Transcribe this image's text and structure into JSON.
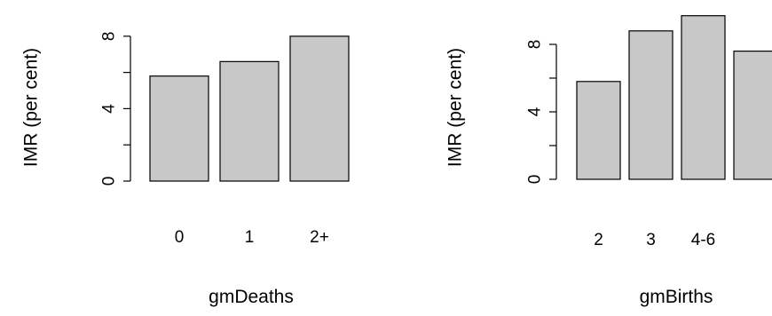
{
  "chart_data": [
    {
      "type": "bar",
      "title": "",
      "xlabel": "gmDeaths",
      "ylabel": "IMR (per cent)",
      "categories": [
        "0",
        "1",
        "2+"
      ],
      "values": [
        5.8,
        6.6,
        8.0
      ],
      "ylim": [
        0,
        8
      ],
      "yticks": [
        0,
        4,
        8
      ],
      "bar_color": "#c8c8c8"
    },
    {
      "type": "bar",
      "title": "",
      "xlabel": "gmBirths",
      "ylabel": "IMR (per cent)",
      "categories": [
        "2",
        "3",
        "4-6",
        ""
      ],
      "values": [
        5.8,
        8.8,
        9.7,
        7.6
      ],
      "ylim": [
        0,
        10
      ],
      "yticks": [
        0,
        4,
        8
      ],
      "bar_color": "#c8c8c8"
    }
  ]
}
